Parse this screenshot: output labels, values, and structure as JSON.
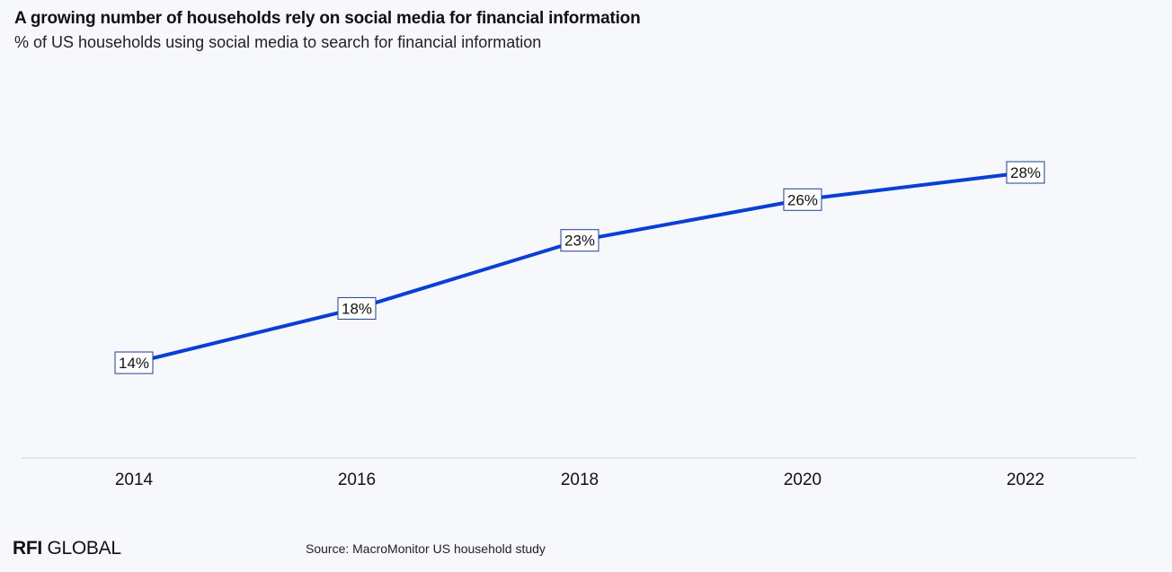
{
  "header": {
    "title": "A growing number of households rely on social media for financial information",
    "subtitle": "% of US households using social media to search for financial information"
  },
  "footer": {
    "brand_bold": "RFI",
    "brand_regular": " GLOBAL",
    "source": "Source: MacroMonitor US household study"
  },
  "colors": {
    "background": "#f7f8fc",
    "line": "#0a3fd4",
    "axis": "#d3d6de",
    "label_border": "#1f3f8a"
  },
  "chart_data": {
    "type": "line",
    "categories": [
      "2014",
      "2016",
      "2018",
      "2020",
      "2022"
    ],
    "series": [
      {
        "values": [
          14,
          18,
          23,
          26,
          28
        ],
        "data_labels": [
          "14%",
          "18%",
          "23%",
          "26%",
          "28%"
        ]
      }
    ],
    "ylim": [
      7,
      35
    ],
    "grid": false,
    "legend": "none"
  }
}
